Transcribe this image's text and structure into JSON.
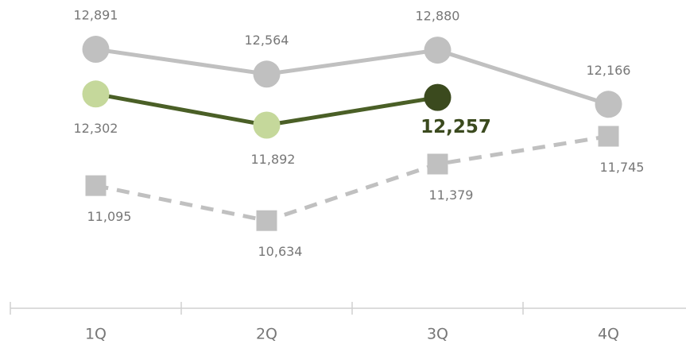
{
  "chart_data": {
    "type": "line",
    "categories": [
      "1Q",
      "2Q",
      "3Q",
      "4Q"
    ],
    "ylim": [
      9480,
      13540
    ],
    "series": [
      {
        "color": "#c0c0c0",
        "marker": "circle",
        "dash": false,
        "values": [
          12891,
          12564,
          12880,
          12166
        ],
        "value_labels": [
          "12,891",
          "12,564",
          "12,880",
          "12,166"
        ]
      },
      {
        "color": "#4a5f26",
        "marker": "circle",
        "dash": false,
        "marker_colors": [
          "#c5d89b",
          "#c5d89b",
          "#3b4a1e",
          null
        ],
        "highlight_index": 2,
        "values": [
          12302,
          11892,
          12257,
          null
        ],
        "value_labels": [
          "12,302",
          "11,892",
          "12,257",
          null
        ]
      },
      {
        "color": "#c0c0c0",
        "marker": "square",
        "dash": true,
        "values": [
          11095,
          10634,
          11379,
          11745
        ],
        "value_labels": [
          "11,095",
          "10,634",
          "11,379",
          "11,745"
        ]
      }
    ]
  }
}
